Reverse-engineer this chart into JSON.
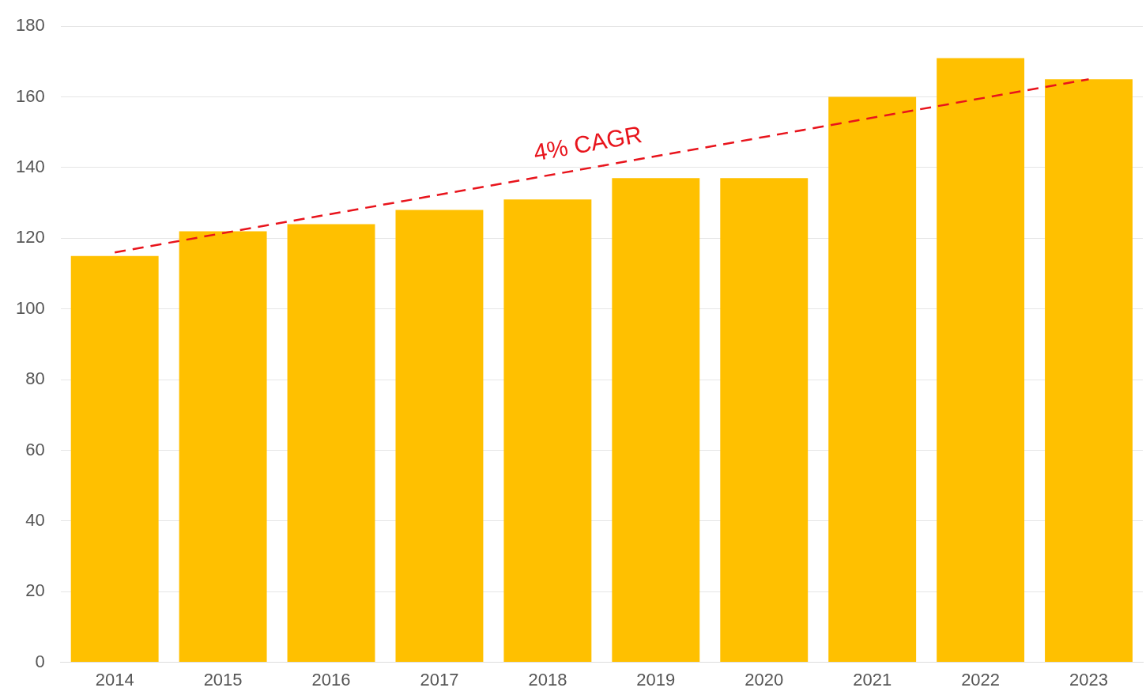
{
  "chart_data": {
    "type": "bar",
    "categories": [
      "2014",
      "2015",
      "2016",
      "2017",
      "2018",
      "2019",
      "2020",
      "2021",
      "2022",
      "2023"
    ],
    "series": [
      {
        "color": "#ffc000",
        "values": [
          115,
          122,
          124,
          128,
          131,
          137,
          137,
          160,
          171,
          165
        ]
      },
      {
        "type": "line",
        "name": "4% CAGR",
        "color": "#e8141c",
        "values": [
          116,
          null,
          null,
          null,
          null,
          null,
          null,
          null,
          null,
          165
        ],
        "line_style": "dashed",
        "marker": "none"
      }
    ],
    "ylim": [
      0,
      180
    ],
    "yticks": [
      0,
      20,
      40,
      60,
      80,
      100,
      120,
      140,
      160,
      180
    ],
    "grid": "y",
    "legend": false
  }
}
